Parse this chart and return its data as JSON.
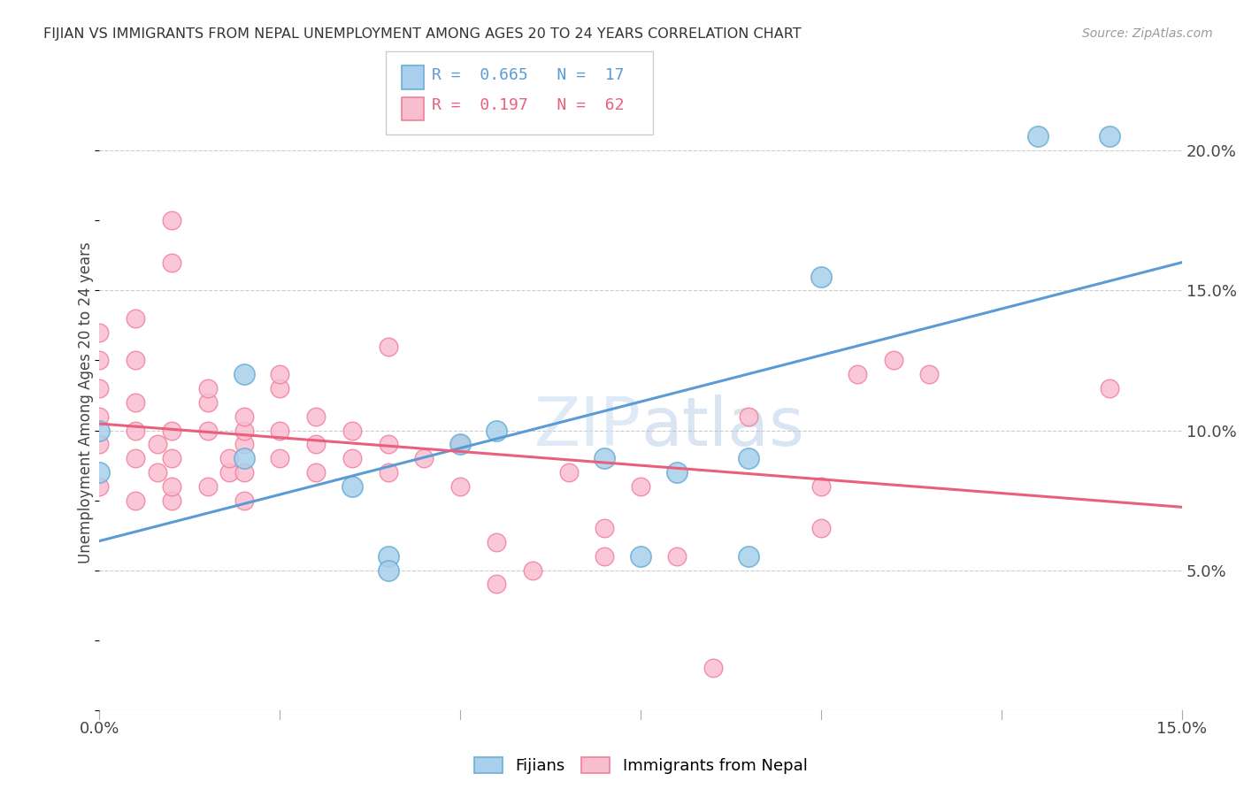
{
  "title": "FIJIAN VS IMMIGRANTS FROM NEPAL UNEMPLOYMENT AMONG AGES 20 TO 24 YEARS CORRELATION CHART",
  "source": "Source: ZipAtlas.com",
  "ylabel": "Unemployment Among Ages 20 to 24 years",
  "r_fijian": 0.665,
  "n_fijian": 17,
  "r_nepal": 0.197,
  "n_nepal": 62,
  "xlim": [
    0.0,
    0.15
  ],
  "ylim": [
    -0.02,
    0.22
  ],
  "plot_ylim": [
    0.0,
    0.22
  ],
  "xticks": [
    0.0,
    0.15
  ],
  "yticks_right": [
    0.05,
    0.1,
    0.15,
    0.2
  ],
  "fijian_color": "#A8D0EC",
  "nepal_color": "#F9BDD0",
  "fijian_edge_color": "#6BAED6",
  "nepal_edge_color": "#F08098",
  "fijian_line_color": "#5B9BD5",
  "nepal_line_color": "#E8607A",
  "background_color": "#FFFFFF",
  "watermark": "ZIPatlas",
  "fijian_points": [
    [
      0.0,
      0.1
    ],
    [
      0.0,
      0.085
    ],
    [
      0.02,
      0.12
    ],
    [
      0.02,
      0.09
    ],
    [
      0.035,
      0.08
    ],
    [
      0.04,
      0.055
    ],
    [
      0.04,
      0.05
    ],
    [
      0.05,
      0.095
    ],
    [
      0.055,
      0.1
    ],
    [
      0.07,
      0.09
    ],
    [
      0.075,
      0.055
    ],
    [
      0.08,
      0.085
    ],
    [
      0.09,
      0.055
    ],
    [
      0.09,
      0.09
    ],
    [
      0.1,
      0.155
    ],
    [
      0.13,
      0.205
    ],
    [
      0.14,
      0.205
    ]
  ],
  "nepal_points": [
    [
      0.0,
      0.08
    ],
    [
      0.0,
      0.095
    ],
    [
      0.0,
      0.105
    ],
    [
      0.0,
      0.115
    ],
    [
      0.0,
      0.125
    ],
    [
      0.0,
      0.135
    ],
    [
      0.005,
      0.075
    ],
    [
      0.005,
      0.09
    ],
    [
      0.005,
      0.1
    ],
    [
      0.005,
      0.11
    ],
    [
      0.005,
      0.125
    ],
    [
      0.005,
      0.14
    ],
    [
      0.008,
      0.085
    ],
    [
      0.008,
      0.095
    ],
    [
      0.01,
      0.075
    ],
    [
      0.01,
      0.08
    ],
    [
      0.01,
      0.09
    ],
    [
      0.01,
      0.1
    ],
    [
      0.01,
      0.16
    ],
    [
      0.01,
      0.175
    ],
    [
      0.015,
      0.08
    ],
    [
      0.015,
      0.1
    ],
    [
      0.015,
      0.11
    ],
    [
      0.015,
      0.115
    ],
    [
      0.018,
      0.085
    ],
    [
      0.018,
      0.09
    ],
    [
      0.02,
      0.075
    ],
    [
      0.02,
      0.085
    ],
    [
      0.02,
      0.095
    ],
    [
      0.02,
      0.1
    ],
    [
      0.02,
      0.105
    ],
    [
      0.025,
      0.09
    ],
    [
      0.025,
      0.1
    ],
    [
      0.025,
      0.115
    ],
    [
      0.025,
      0.12
    ],
    [
      0.03,
      0.085
    ],
    [
      0.03,
      0.095
    ],
    [
      0.03,
      0.105
    ],
    [
      0.035,
      0.09
    ],
    [
      0.035,
      0.1
    ],
    [
      0.04,
      0.085
    ],
    [
      0.04,
      0.095
    ],
    [
      0.04,
      0.13
    ],
    [
      0.045,
      0.09
    ],
    [
      0.05,
      0.08
    ],
    [
      0.05,
      0.095
    ],
    [
      0.055,
      0.045
    ],
    [
      0.055,
      0.06
    ],
    [
      0.06,
      0.05
    ],
    [
      0.065,
      0.085
    ],
    [
      0.07,
      0.055
    ],
    [
      0.07,
      0.065
    ],
    [
      0.075,
      0.08
    ],
    [
      0.08,
      0.055
    ],
    [
      0.085,
      0.015
    ],
    [
      0.09,
      0.105
    ],
    [
      0.1,
      0.065
    ],
    [
      0.1,
      0.08
    ],
    [
      0.105,
      0.12
    ],
    [
      0.11,
      0.125
    ],
    [
      0.115,
      0.12
    ],
    [
      0.14,
      0.115
    ]
  ]
}
